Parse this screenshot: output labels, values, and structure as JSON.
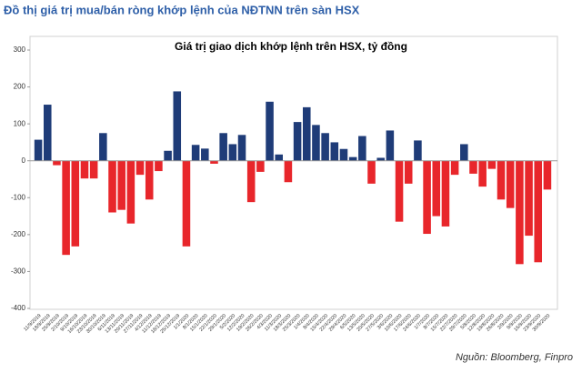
{
  "header": {
    "title": "Đồ thị giá trị mua/bán ròng khớp lệnh của NĐTNN trên sàn HSX"
  },
  "chart_data": {
    "type": "bar",
    "title": "Giá trị giao dịch khớp lệnh trên HSX, tỷ đồng",
    "categories": [
      "11/9/2019",
      "18/9/2019",
      "25/9/2019",
      "2/10/2019",
      "9/10/2019",
      "16/10/2019",
      "23/10/2019",
      "30/10/2019",
      "6/11/2019",
      "13/11/2019",
      "20/11/2019",
      "27/11/2019",
      "4/12/2019",
      "11/12/2019",
      "18/12/2019",
      "25/12/2019",
      "1/1/2020",
      "8/1/2020",
      "15/1/2020",
      "22/1/2020",
      "29/1/2020",
      "5/2/2020",
      "12/2/2020",
      "19/2/2020",
      "26/2/2020",
      "4/3/2020",
      "11/3/2020",
      "18/3/2020",
      "25/3/2020",
      "1/4/2020",
      "8/4/2020",
      "15/4/2020",
      "22/4/2020",
      "29/4/2020",
      "6/5/2020",
      "13/5/2020",
      "20/5/2020",
      "27/5/2020",
      "3/6/2020",
      "10/6/2020",
      "17/6/2020",
      "24/6/2020",
      "1/7/2020",
      "8/7/2020",
      "15/7/2020",
      "22/7/2020",
      "29/7/2020",
      "5/8/2020",
      "12/8/2020",
      "19/8/2020",
      "26/8/2020",
      "2/9/2020",
      "9/9/2020",
      "16/9/2020",
      "23/9/2020",
      "30/9/2020"
    ],
    "values": [
      57,
      152,
      -12,
      -255,
      -232,
      -48,
      -48,
      75,
      -140,
      -133,
      -170,
      -38,
      -105,
      -28,
      27,
      188,
      -232,
      43,
      33,
      -8,
      75,
      45,
      70,
      -112,
      -30,
      160,
      17,
      -58,
      105,
      145,
      97,
      75,
      50,
      32,
      10,
      67,
      -62,
      8,
      82,
      -165,
      -62,
      55,
      -198,
      -150,
      -178,
      -38,
      45,
      -35,
      -70,
      -22,
      -105,
      -128,
      -280,
      -203,
      -275,
      -78
    ],
    "positive_color": "#1f3c78",
    "negative_color": "#e8262b",
    "ylim": [
      -400,
      300
    ],
    "yticks": [
      -400,
      -300,
      -200,
      -100,
      0,
      100,
      200,
      300
    ]
  },
  "source": "Nguồn: Bloomberg, Finpro"
}
